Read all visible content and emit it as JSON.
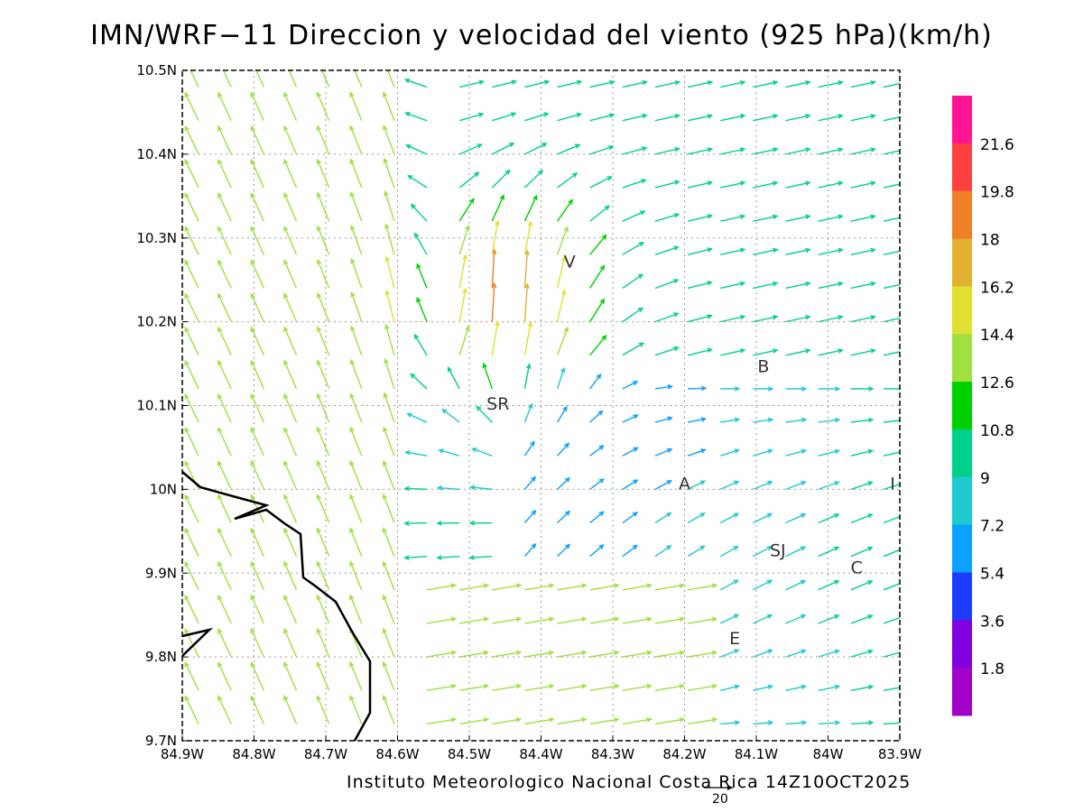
{
  "title": "IMN/WRF−11 Direccion y velocidad del viento (925 hPa)(km/h)",
  "footer": "Instituto Meteorologico Nacional Costa Rica 14Z10OCT2025",
  "reference_vector": {
    "label": "20",
    "speed": 20
  },
  "map": {
    "x_ticks": [
      "84.9W",
      "84.8W",
      "84.7W",
      "84.6W",
      "84.5W",
      "84.4W",
      "84.3W",
      "84.2W",
      "84.1W",
      "84W",
      "83.9W"
    ],
    "y_ticks": [
      "10.5N",
      "10.4N",
      "10.3N",
      "10.2N",
      "10.1N",
      "10N",
      "9.9N",
      "9.8N",
      "9.7N"
    ],
    "lon_range": [
      -84.9,
      -83.9
    ],
    "lat_range": [
      9.7,
      10.5
    ],
    "grid": "dotted",
    "coastline_color": "#000000",
    "station_labels": [
      {
        "text": "V",
        "lon": -84.36,
        "lat": 10.265
      },
      {
        "text": "B",
        "lon": -84.09,
        "lat": 10.14
      },
      {
        "text": "SR",
        "lon": -84.46,
        "lat": 10.095
      },
      {
        "text": "A",
        "lon": -84.2,
        "lat": 10.0
      },
      {
        "text": "SJ",
        "lon": -84.07,
        "lat": 9.92
      },
      {
        "text": "C",
        "lon": -83.96,
        "lat": 9.9
      },
      {
        "text": "I",
        "lon": -83.91,
        "lat": 10.0
      },
      {
        "text": "E",
        "lon": -84.13,
        "lat": 9.815
      }
    ]
  },
  "colorbar": {
    "labels": [
      "21.6",
      "19.8",
      "18",
      "16.2",
      "14.4",
      "12.6",
      "10.8",
      "9",
      "7.2",
      "5.4",
      "3.6",
      "1.8"
    ],
    "colors": [
      "#ff1493",
      "#ff4040",
      "#f08028",
      "#e0b030",
      "#e0e030",
      "#a0e040",
      "#00d000",
      "#00d08c",
      "#20c8d0",
      "#0ca0ff",
      "#1e3cff",
      "#8000e0",
      "#a000c8"
    ]
  }
}
